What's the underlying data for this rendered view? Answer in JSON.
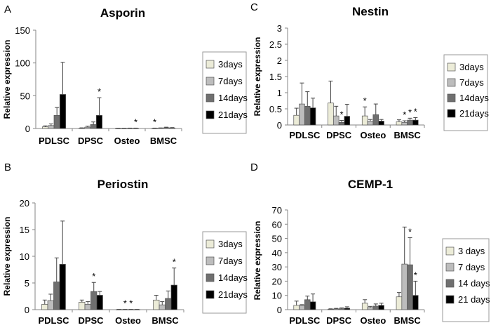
{
  "colors": {
    "series": [
      "#ececd8",
      "#bdbdbd",
      "#6f6f6f",
      "#000000"
    ],
    "axis": "#868686",
    "bar_stroke": "#555555",
    "legend_border": "#9a9a9a",
    "text": "#000000"
  },
  "chart_data": [
    {
      "type": "bar",
      "panel_label": "A",
      "title": "Asporin",
      "ylabel": "Relative expression",
      "xlabel": "",
      "ylim": [
        0,
        150
      ],
      "yticks": [
        0,
        50,
        100,
        150
      ],
      "ytick_labels": [
        "0",
        "50",
        "100",
        "150"
      ],
      "categories": [
        "PDLSC",
        "DPSC",
        "Osteo",
        "BMSC"
      ],
      "legend_position": "right",
      "series": [
        {
          "name": "3days",
          "values": [
            2.5,
            0.5,
            0.2,
            0.3
          ],
          "errors": [
            1.5,
            0.5,
            0.2,
            0.3
          ]
        },
        {
          "name": "7days",
          "values": [
            4.5,
            2.0,
            0.2,
            0.5
          ],
          "errors": [
            2.5,
            1.5,
            0.2,
            0.4
          ]
        },
        {
          "name": "14days",
          "values": [
            20,
            6,
            0.3,
            1.2
          ],
          "errors": [
            12,
            4,
            0.3,
            0.8
          ]
        },
        {
          "name": "21days",
          "values": [
            52,
            20,
            0.3,
            0.8
          ],
          "errors": [
            49,
            27,
            0.3,
            0.6
          ]
        }
      ],
      "annotations": [
        {
          "text": "*",
          "category": 1,
          "series": 3
        },
        {
          "text": "*",
          "category": 2,
          "series": 3
        },
        {
          "text": "*",
          "category": 3,
          "series": 0
        }
      ]
    },
    {
      "type": "bar",
      "panel_label": "C",
      "title": "Nestin",
      "ylabel": "Relative expression",
      "xlabel": "",
      "ylim": [
        0,
        3
      ],
      "yticks": [
        0,
        0.5,
        1,
        1.5,
        2,
        2.5,
        3
      ],
      "ytick_labels": [
        "0",
        "0.5",
        "1",
        "1.5",
        "2",
        "2.5",
        "3"
      ],
      "categories": [
        "PDLSC",
        "DPSC",
        "Osteo",
        "BMSC"
      ],
      "legend_position": "right",
      "series": [
        {
          "name": "3days",
          "values": [
            0.3,
            0.68,
            0.28,
            0.1
          ],
          "errors": [
            0.22,
            0.68,
            0.28,
            0.06
          ]
        },
        {
          "name": "7days",
          "values": [
            0.65,
            0.28,
            0.12,
            0.08
          ],
          "errors": [
            0.65,
            0.3,
            0.05,
            0.05
          ]
        },
        {
          "name": "14days",
          "values": [
            0.58,
            0.08,
            0.32,
            0.15
          ],
          "errors": [
            0.45,
            0.06,
            0.33,
            0.06
          ]
        },
        {
          "name": "21days",
          "values": [
            0.53,
            0.27,
            0.12,
            0.15
          ],
          "errors": [
            0.3,
            0.37,
            0.05,
            0.08
          ]
        }
      ],
      "annotations": [
        {
          "text": "*",
          "category": 1,
          "series": 2
        },
        {
          "text": "*",
          "category": 2,
          "series": 0
        },
        {
          "text": "*",
          "category": 3,
          "series": 1
        },
        {
          "text": "*",
          "category": 3,
          "series": 2
        },
        {
          "text": "*",
          "category": 3,
          "series": 3
        }
      ]
    },
    {
      "type": "bar",
      "panel_label": "B",
      "title": "Periostin",
      "ylabel": "Relative expression",
      "xlabel": "",
      "ylim": [
        0,
        20
      ],
      "yticks": [
        0,
        5,
        10,
        15,
        20
      ],
      "ytick_labels": [
        "0",
        "5",
        "10",
        "15",
        "20"
      ],
      "categories": [
        "PDLSC",
        "DPSC",
        "Osteo",
        "BMSC"
      ],
      "legend_position": "right",
      "series": [
        {
          "name": "3days",
          "values": [
            1.0,
            1.4,
            0.03,
            1.8
          ],
          "errors": [
            0.8,
            0.4,
            0.02,
            0.9
          ]
        },
        {
          "name": "7days",
          "values": [
            1.7,
            1.0,
            0.03,
            0.9
          ],
          "errors": [
            1.2,
            0.5,
            0.02,
            0.6
          ]
        },
        {
          "name": "14days",
          "values": [
            5.2,
            3.4,
            0.03,
            2.1
          ],
          "errors": [
            4.5,
            1.7,
            0.02,
            1.4
          ]
        },
        {
          "name": "21days",
          "values": [
            8.5,
            2.7,
            0.03,
            4.6
          ],
          "errors": [
            8.1,
            0.7,
            0.02,
            3.2
          ]
        }
      ],
      "annotations": [
        {
          "text": "*",
          "category": 1,
          "series": 2
        },
        {
          "text": "*",
          "category": 2,
          "series": 1
        },
        {
          "text": "*",
          "category": 2,
          "series": 2
        },
        {
          "text": "*",
          "category": 3,
          "series": 3
        }
      ]
    },
    {
      "type": "bar",
      "panel_label": "D",
      "title": "CEMP-1",
      "ylabel": "Relative expression",
      "xlabel": "",
      "ylim": [
        0,
        70
      ],
      "yticks": [
        0,
        10,
        20,
        30,
        40,
        50,
        60,
        70
      ],
      "ytick_labels": [
        "0",
        "10",
        "20",
        "30",
        "40",
        "50",
        "60",
        "70"
      ],
      "categories": [
        "PDLSC",
        "DPSC",
        "Osteo",
        "BMSC"
      ],
      "legend_position": "right",
      "series": [
        {
          "name": "3 days",
          "values": [
            3,
            0.3,
            4.5,
            9
          ],
          "errors": [
            3,
            0.3,
            2.5,
            3
          ]
        },
        {
          "name": "7 days",
          "values": [
            3,
            0.5,
            1.5,
            32
          ],
          "errors": [
            0.5,
            0.4,
            0.8,
            26
          ]
        },
        {
          "name": "14 days",
          "values": [
            7,
            0.7,
            2.5,
            31.5
          ],
          "errors": [
            2.5,
            0.5,
            1.5,
            19
          ]
        },
        {
          "name": "21 days",
          "values": [
            5.5,
            1,
            3,
            10
          ],
          "errors": [
            5.5,
            1,
            1.5,
            10
          ]
        }
      ],
      "annotations": [
        {
          "text": "*",
          "category": 3,
          "series": 2
        },
        {
          "text": "*",
          "category": 3,
          "series": 3
        }
      ]
    }
  ]
}
